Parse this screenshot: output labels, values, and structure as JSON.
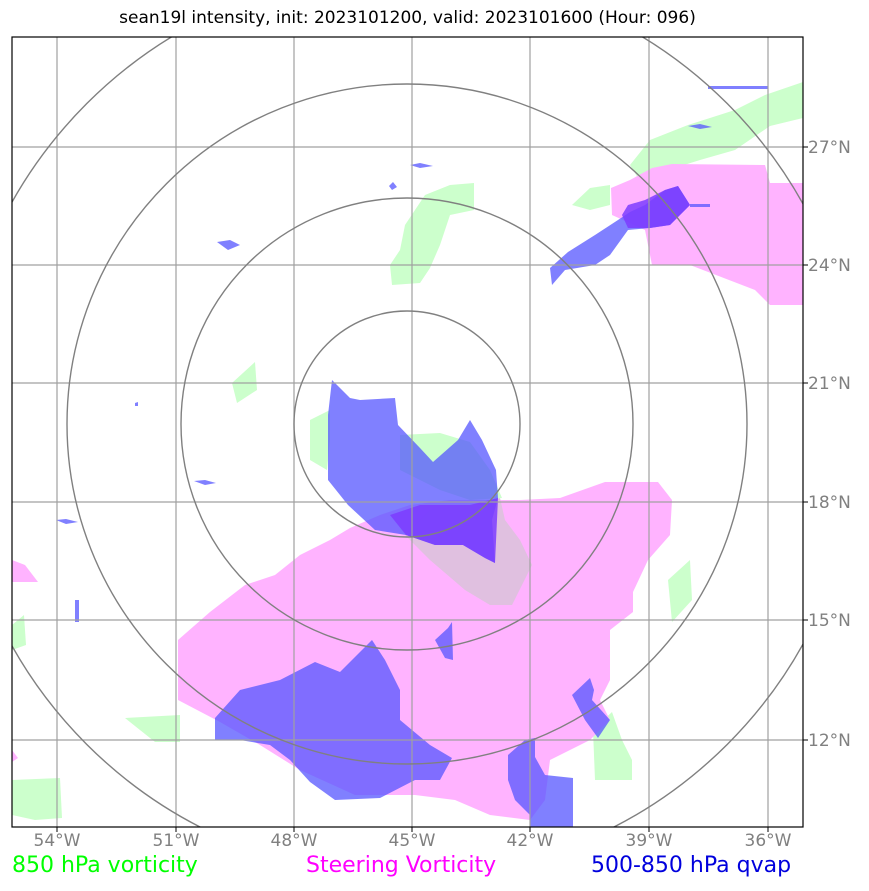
{
  "title": "sean19l intensity, init: 2023101200, valid: 2023101600 (Hour: 096)",
  "map": {
    "lon_ticks": [
      "54°W",
      "51°W",
      "48°W",
      "45°W",
      "42°W",
      "39°W",
      "36°W"
    ],
    "lat_ticks": [
      "27°N",
      "24°N",
      "21°N",
      "18°N",
      "15°N",
      "12°N"
    ],
    "gridlines": true,
    "range_rings": 4,
    "colors": {
      "vorticity_850": "#ccffcc",
      "steering_vorticity": "#ffb3ff",
      "qvap_500_850": "#5555ff",
      "gridline": "#a0a0a0",
      "ring": "#808080"
    }
  },
  "legend": {
    "green": "850 hPa vorticity",
    "magenta": "Steering Vorticity",
    "blue": "500-850 hPa qvap"
  }
}
